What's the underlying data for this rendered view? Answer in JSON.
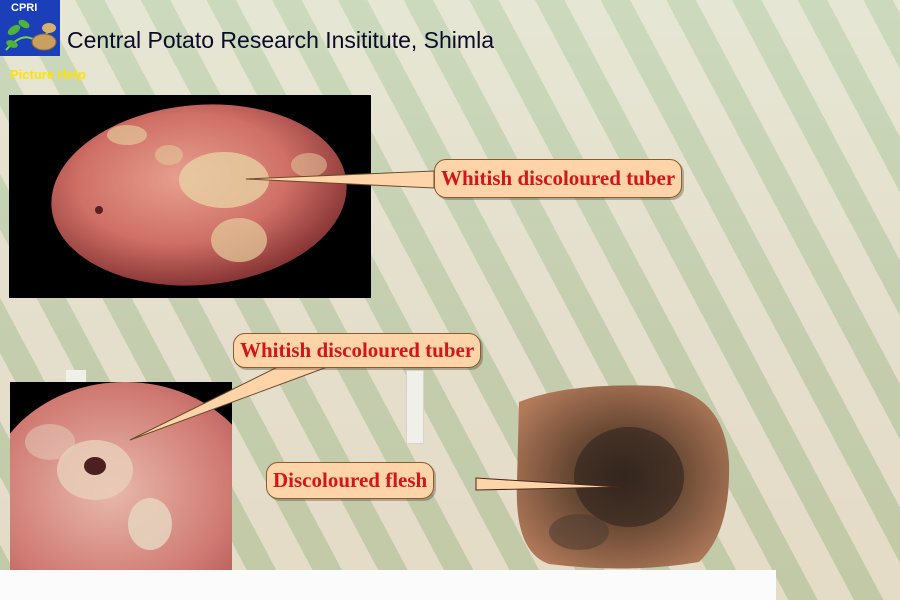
{
  "header": {
    "logo_text": "CPRI",
    "title": "Central Potato Research Insititute, Shimla",
    "help_link": "Picture Help"
  },
  "callouts": [
    {
      "label": "Whitish discoloured tuber"
    },
    {
      "label": "Whitish discoloured tuber"
    },
    {
      "label": "Discoloured flesh"
    }
  ],
  "colors": {
    "logo_bg": "#1a3fb8",
    "help_link": "#ffe300",
    "callout_fill": "#ffd4a8",
    "callout_text": "#d2161a"
  },
  "icons": {
    "logo": "leaf-tuber-logo-icon"
  }
}
